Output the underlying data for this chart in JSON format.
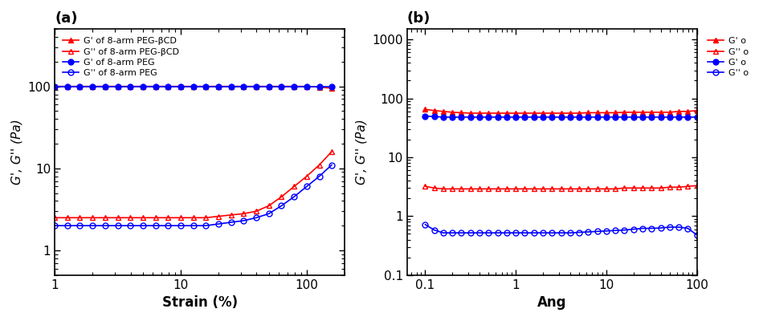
{
  "background_color": "#ffffff",
  "fig_width": 9.5,
  "fig_height": 4.0,
  "panel_a": {
    "title": "(a)",
    "xlabel": "Strain (%)",
    "ylabel": "G', G'' (Pa)",
    "xlim": [
      1,
      200
    ],
    "ylim": [
      0.5,
      500
    ],
    "legend": [
      {
        "label": "G' of 8-arm PEG-βCD",
        "color": "#FF0000",
        "marker": "^",
        "filled": true
      },
      {
        "label": "G'' of 8-arm PEG-βCD",
        "color": "#FF0000",
        "marker": "^",
        "filled": false
      },
      {
        "label": "G' of 8-arm PEG",
        "color": "#0000FF",
        "marker": "o",
        "filled": true
      },
      {
        "label": "G'' of 8-arm PEG",
        "color": "#0000FF",
        "marker": "o",
        "filled": false
      }
    ],
    "series": {
      "red_filled": {
        "x": [
          1.0,
          1.26,
          1.58,
          2.0,
          2.51,
          3.16,
          3.98,
          5.01,
          6.31,
          7.94,
          10.0,
          12.6,
          15.8,
          20.0,
          25.1,
          31.6,
          39.8,
          50.1,
          63.1,
          79.4,
          100.0,
          126,
          158
        ],
        "y": [
          100,
          100,
          100,
          100,
          100,
          100,
          100,
          100,
          100,
          100,
          100,
          100,
          100,
          100,
          100,
          100,
          100,
          100,
          100,
          100,
          100,
          98,
          95
        ],
        "color": "#FF0000",
        "marker": "^",
        "filled": true
      },
      "blue_filled": {
        "x": [
          1.0,
          1.26,
          1.58,
          2.0,
          2.51,
          3.16,
          3.98,
          5.01,
          6.31,
          7.94,
          10.0,
          12.6,
          15.8,
          20.0,
          25.1,
          31.6,
          39.8,
          50.1,
          63.1,
          79.4,
          100.0,
          126,
          158
        ],
        "y": [
          100,
          100,
          100,
          100,
          100,
          100,
          100,
          100,
          100,
          100,
          100,
          100,
          100,
          100,
          100,
          100,
          100,
          100,
          100,
          100,
          100,
          100,
          100
        ],
        "color": "#0000FF",
        "marker": "o",
        "filled": true
      },
      "red_open": {
        "x": [
          1.0,
          1.26,
          1.58,
          2.0,
          2.51,
          3.16,
          3.98,
          5.01,
          6.31,
          7.94,
          10.0,
          12.6,
          15.8,
          20.0,
          25.1,
          31.6,
          39.8,
          50.1,
          63.1,
          79.4,
          100.0,
          126,
          158
        ],
        "y": [
          2.5,
          2.5,
          2.5,
          2.5,
          2.5,
          2.5,
          2.5,
          2.5,
          2.5,
          2.5,
          2.5,
          2.5,
          2.5,
          2.6,
          2.7,
          2.8,
          3.0,
          3.5,
          4.5,
          6.0,
          8.0,
          11.0,
          16.0
        ],
        "color": "#FF0000",
        "marker": "^",
        "filled": false
      },
      "blue_open": {
        "x": [
          1.0,
          1.26,
          1.58,
          2.0,
          2.51,
          3.16,
          3.98,
          5.01,
          6.31,
          7.94,
          10.0,
          12.6,
          15.8,
          20.0,
          25.1,
          31.6,
          39.8,
          50.1,
          63.1,
          79.4,
          100.0,
          126,
          158
        ],
        "y": [
          2.0,
          2.0,
          2.0,
          2.0,
          2.0,
          2.0,
          2.0,
          2.0,
          2.0,
          2.0,
          2.0,
          2.0,
          2.0,
          2.1,
          2.2,
          2.3,
          2.5,
          2.8,
          3.5,
          4.5,
          6.0,
          8.0,
          11.0
        ],
        "color": "#0000FF",
        "marker": "o",
        "filled": false
      }
    }
  },
  "panel_b": {
    "title": "(b)",
    "xlabel": "Ang",
    "ylabel": "G', G'' (Pa)",
    "xlim": [
      0.063,
      100
    ],
    "ylim": [
      0.1,
      1500
    ],
    "legend": [
      {
        "label": "G' o",
        "color": "#FF0000",
        "marker": "^",
        "filled": true
      },
      {
        "label": "G'' o",
        "color": "#FF0000",
        "marker": "^",
        "filled": false
      },
      {
        "label": "G' o",
        "color": "#0000FF",
        "marker": "o",
        "filled": true
      },
      {
        "label": "G'' o",
        "color": "#0000FF",
        "marker": "o",
        "filled": false
      }
    ],
    "series": {
      "red_filled": {
        "x": [
          0.1,
          0.126,
          0.158,
          0.2,
          0.251,
          0.316,
          0.398,
          0.501,
          0.631,
          0.794,
          1.0,
          1.26,
          1.58,
          2.0,
          2.51,
          3.16,
          3.98,
          5.01,
          6.31,
          7.94,
          10.0,
          12.6,
          15.8,
          20.0,
          25.1,
          31.6,
          39.8,
          50.1,
          63.1,
          79.4,
          100.0
        ],
        "y": [
          65,
          62,
          60,
          58,
          57,
          56,
          56,
          56,
          56,
          56,
          56,
          56,
          56,
          56,
          56,
          56,
          56,
          56,
          57,
          57,
          57,
          57,
          58,
          58,
          58,
          58,
          58,
          58,
          60,
          60,
          62
        ],
        "color": "#FF0000",
        "marker": "^",
        "filled": true
      },
      "blue_filled": {
        "x": [
          0.1,
          0.126,
          0.158,
          0.2,
          0.251,
          0.316,
          0.398,
          0.501,
          0.631,
          0.794,
          1.0,
          1.26,
          1.58,
          2.0,
          2.51,
          3.16,
          3.98,
          5.01,
          6.31,
          7.94,
          10.0,
          12.6,
          15.8,
          20.0,
          25.1,
          31.6,
          39.8,
          50.1,
          63.1,
          79.4,
          100.0
        ],
        "y": [
          50,
          49,
          48,
          48,
          48,
          48,
          48,
          48,
          48,
          48,
          48,
          48,
          48,
          48,
          48,
          48,
          48,
          48,
          48,
          48,
          48,
          48,
          48,
          48,
          48,
          48,
          48,
          48,
          48,
          48,
          48
        ],
        "color": "#0000FF",
        "marker": "o",
        "filled": true
      },
      "red_open": {
        "x": [
          0.1,
          0.126,
          0.158,
          0.2,
          0.251,
          0.316,
          0.398,
          0.501,
          0.631,
          0.794,
          1.0,
          1.26,
          1.58,
          2.0,
          2.51,
          3.16,
          3.98,
          5.01,
          6.31,
          7.94,
          10.0,
          12.6,
          15.8,
          20.0,
          25.1,
          31.6,
          39.8,
          50.1,
          63.1,
          79.4,
          100.0
        ],
        "y": [
          3.2,
          3.0,
          2.9,
          2.9,
          2.9,
          2.9,
          2.9,
          2.9,
          2.9,
          2.9,
          2.9,
          2.9,
          2.9,
          2.9,
          2.9,
          2.9,
          2.9,
          2.9,
          2.9,
          2.9,
          2.9,
          2.9,
          3.0,
          3.0,
          3.0,
          3.0,
          3.0,
          3.1,
          3.1,
          3.2,
          3.3
        ],
        "color": "#FF0000",
        "marker": "^",
        "filled": false
      },
      "blue_open": {
        "x": [
          0.1,
          0.126,
          0.158,
          0.2,
          0.251,
          0.316,
          0.398,
          0.501,
          0.631,
          0.794,
          1.0,
          1.26,
          1.58,
          2.0,
          2.51,
          3.16,
          3.98,
          5.01,
          6.31,
          7.94,
          10.0,
          12.6,
          15.8,
          20.0,
          25.1,
          31.6,
          39.8,
          50.1,
          63.1,
          79.4,
          100.0
        ],
        "y": [
          0.72,
          0.58,
          0.52,
          0.52,
          0.52,
          0.52,
          0.52,
          0.52,
          0.52,
          0.52,
          0.52,
          0.52,
          0.52,
          0.52,
          0.52,
          0.52,
          0.52,
          0.53,
          0.54,
          0.55,
          0.56,
          0.57,
          0.58,
          0.6,
          0.62,
          0.62,
          0.63,
          0.65,
          0.65,
          0.62,
          0.48
        ],
        "color": "#0000FF",
        "marker": "o",
        "filled": false
      }
    }
  },
  "markersize": 5,
  "linewidth": 1.2
}
